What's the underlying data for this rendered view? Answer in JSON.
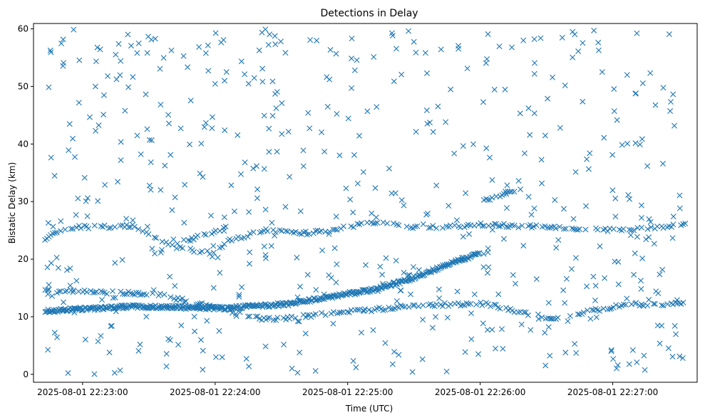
{
  "colors": {
    "marker": "#1f77b4",
    "axis": "#000000",
    "background": "#ffffff"
  },
  "chart_data": {
    "type": "scatter",
    "title": "Detections in Delay",
    "xlabel": "Time (UTC)",
    "ylabel": "Bistatic Delay (km)",
    "marker": "x",
    "grid": false,
    "legend": "none",
    "x_start": "2025-08-01 22:22:43",
    "x_end": "2025-08-01 22:27:33",
    "xlim": [
      "2025-08-01 22:22:43",
      "2025-08-01 22:27:33"
    ],
    "ylim": [
      0,
      60
    ],
    "x_ticks": [
      "2025-08-01 22:23:00",
      "2025-08-01 22:24:00",
      "2025-08-01 22:25:00",
      "2025-08-01 22:26:00",
      "2025-08-01 22:27:00"
    ],
    "y_ticks": [
      "0",
      "10",
      "20",
      "30",
      "40",
      "50",
      "60"
    ],
    "tracks": [
      {
        "name": "main-curve",
        "t_start": "2025-08-01 22:22:43",
        "t_end": "2025-08-01 22:26:00",
        "knots": [
          [
            0,
            11.0
          ],
          [
            40,
            11.8
          ],
          [
            80,
            11.5
          ],
          [
            110,
            12.2
          ],
          [
            130,
            13.5
          ],
          [
            150,
            14.8
          ],
          [
            165,
            16.5
          ],
          [
            185,
            19.5
          ],
          [
            197,
            21.0
          ]
        ]
      },
      {
        "name": "upper-band",
        "t_start": "2025-08-01 22:22:43",
        "t_end": "2025-08-01 22:27:33",
        "knots": [
          [
            0,
            23.5
          ],
          [
            10,
            25.5
          ],
          [
            40,
            25.8
          ],
          [
            60,
            22.0
          ],
          [
            75,
            21.0
          ],
          [
            85,
            23.5
          ],
          [
            100,
            25.0
          ],
          [
            120,
            24.5
          ],
          [
            150,
            26.5
          ],
          [
            170,
            25.5
          ],
          [
            200,
            26.0
          ],
          [
            230,
            25.5
          ],
          [
            260,
            25.0
          ],
          [
            290,
            26.0
          ]
        ]
      },
      {
        "name": "climb-mid",
        "t_start": "2025-08-01 22:23:45",
        "t_end": "2025-08-01 22:24:05",
        "knots": [
          [
            0,
            23.0
          ],
          [
            20,
            25.5
          ]
        ]
      },
      {
        "name": "climb-right",
        "t_start": "2025-08-01 22:26:00",
        "t_end": "2025-08-01 22:26:17",
        "knots": [
          [
            0,
            30.0
          ],
          [
            17,
            32.0
          ]
        ]
      },
      {
        "name": "lower-band",
        "t_start": "2025-08-01 22:22:43",
        "t_end": "2025-08-01 22:27:33",
        "knots": [
          [
            0,
            14.5
          ],
          [
            50,
            14.0
          ],
          [
            100,
            9.5
          ],
          [
            170,
            12.0
          ],
          [
            200,
            12.2
          ],
          [
            230,
            9.5
          ],
          [
            260,
            12.0
          ],
          [
            290,
            12.3
          ]
        ]
      }
    ],
    "noise": {
      "count": 560,
      "y_range": [
        0,
        60
      ]
    },
    "tick_label_precision": "seconds"
  }
}
